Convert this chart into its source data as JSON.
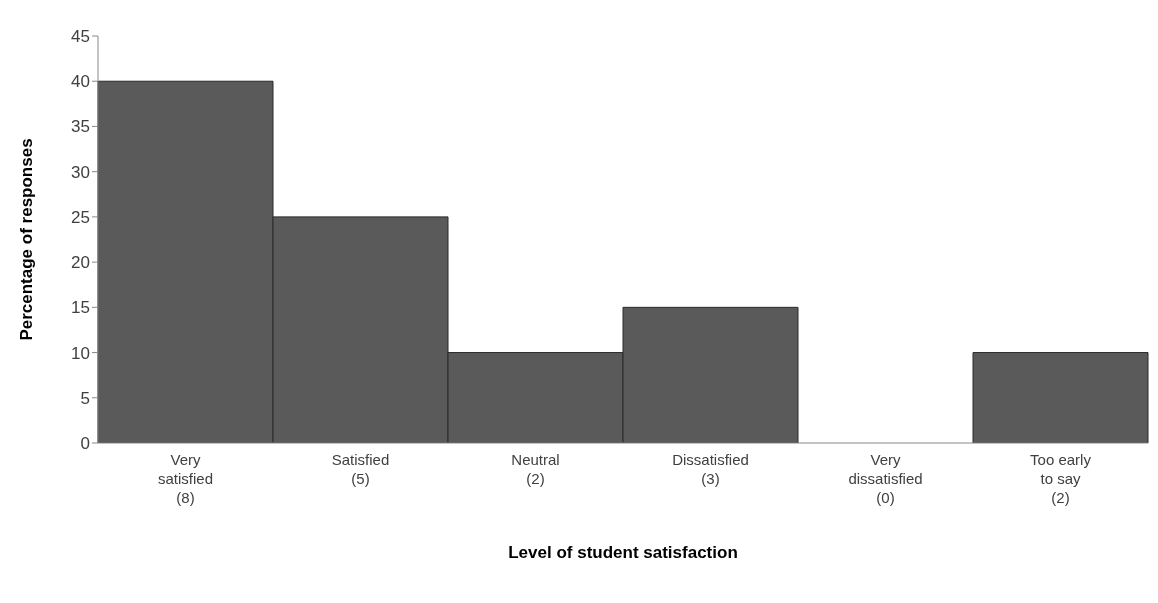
{
  "chart_data": {
    "type": "bar",
    "xlabel": "Level  of student satisfaction",
    "ylabel": "Percentage of responses",
    "categories": [
      "Very\nsatisfied\n(8)",
      "Satisfied\n(5)",
      "Neutral\n(2)",
      "Dissatisfied\n(3)",
      "Very\ndissatisfied\n(0)",
      "Too early\nto say\n(2)"
    ],
    "values": [
      40,
      25,
      10,
      15,
      0,
      10
    ],
    "color": "#5a5a5a",
    "ylim": [
      0,
      45
    ],
    "yticks": [
      0,
      5,
      10,
      15,
      20,
      25,
      30,
      35,
      40,
      45
    ],
    "grid": false,
    "legend": false
  }
}
